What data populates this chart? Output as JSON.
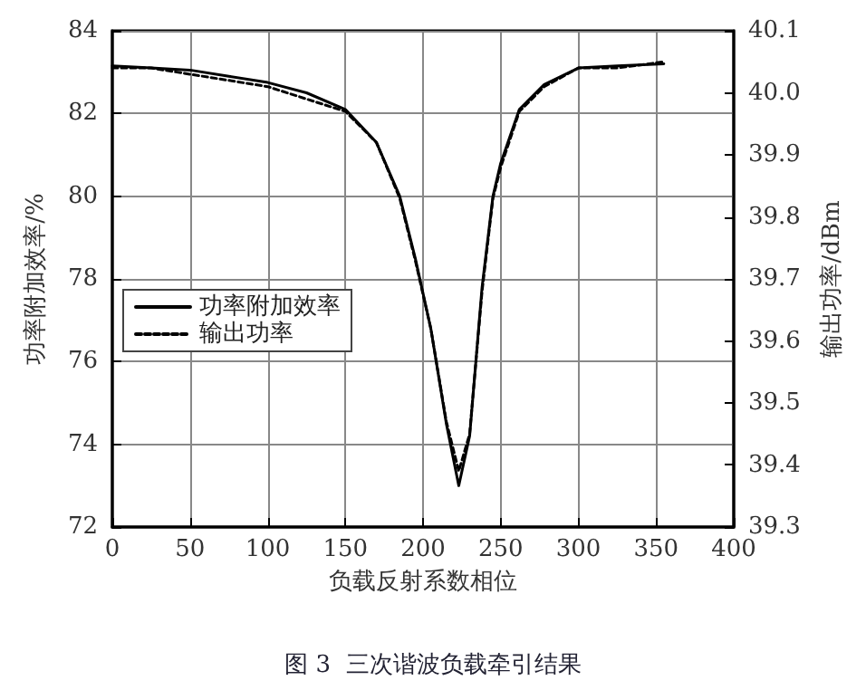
{
  "chart_data": {
    "type": "line",
    "title": "图 3  三次谐波负载牵引结果",
    "xlabel": "负载反射系数相位",
    "ylabel": "功率附加效率/%",
    "y2label": "输出功率/dBm",
    "x": [
      0,
      25,
      50,
      75,
      100,
      125,
      150,
      170,
      185,
      195,
      205,
      215,
      223,
      230,
      238,
      245,
      250,
      262,
      278,
      300,
      325,
      355
    ],
    "series": [
      {
        "name": "功率附加效率",
        "color": "#000000",
        "line_style": "solid",
        "values": [
          83.15,
          83.1,
          83.05,
          82.9,
          82.75,
          82.5,
          82.1,
          81.3,
          80.0,
          78.5,
          76.8,
          74.5,
          73.0,
          74.2,
          77.8,
          80.0,
          80.8,
          82.1,
          82.7,
          83.1,
          83.15,
          83.2
        ]
      },
      {
        "name": "输出功率",
        "color": "#000000",
        "line_style": "dashed",
        "axis": "y2",
        "values": [
          40.04,
          40.04,
          40.03,
          40.02,
          40.01,
          39.99,
          39.97,
          39.92,
          39.83,
          39.73,
          39.62,
          39.47,
          39.39,
          39.45,
          39.68,
          39.83,
          39.88,
          39.97,
          40.01,
          40.04,
          40.04,
          40.05
        ]
      }
    ],
    "xlim": [
      0,
      400
    ],
    "xticks": [
      0,
      50,
      100,
      150,
      200,
      250,
      300,
      350,
      400
    ],
    "ylim": [
      72,
      84
    ],
    "yticks": [
      72,
      74,
      76,
      78,
      80,
      82,
      84
    ],
    "y2lim": [
      39.3,
      40.1
    ],
    "y2ticks": [
      {
        "value": 39.3,
        "label": "39.3"
      },
      {
        "value": 39.4,
        "label": "39.4"
      },
      {
        "value": 39.5,
        "label": "39.5"
      },
      {
        "value": 39.6,
        "label": "39.6"
      },
      {
        "value": 39.7,
        "label": "39.7"
      },
      {
        "value": 39.8,
        "label": "39.8"
      },
      {
        "value": 39.9,
        "label": "39.9"
      },
      {
        "value": 40.0,
        "label": "40.0"
      },
      {
        "value": 40.1,
        "label": "40.1"
      }
    ],
    "grid": true,
    "legend": "left",
    "marker": "none"
  }
}
